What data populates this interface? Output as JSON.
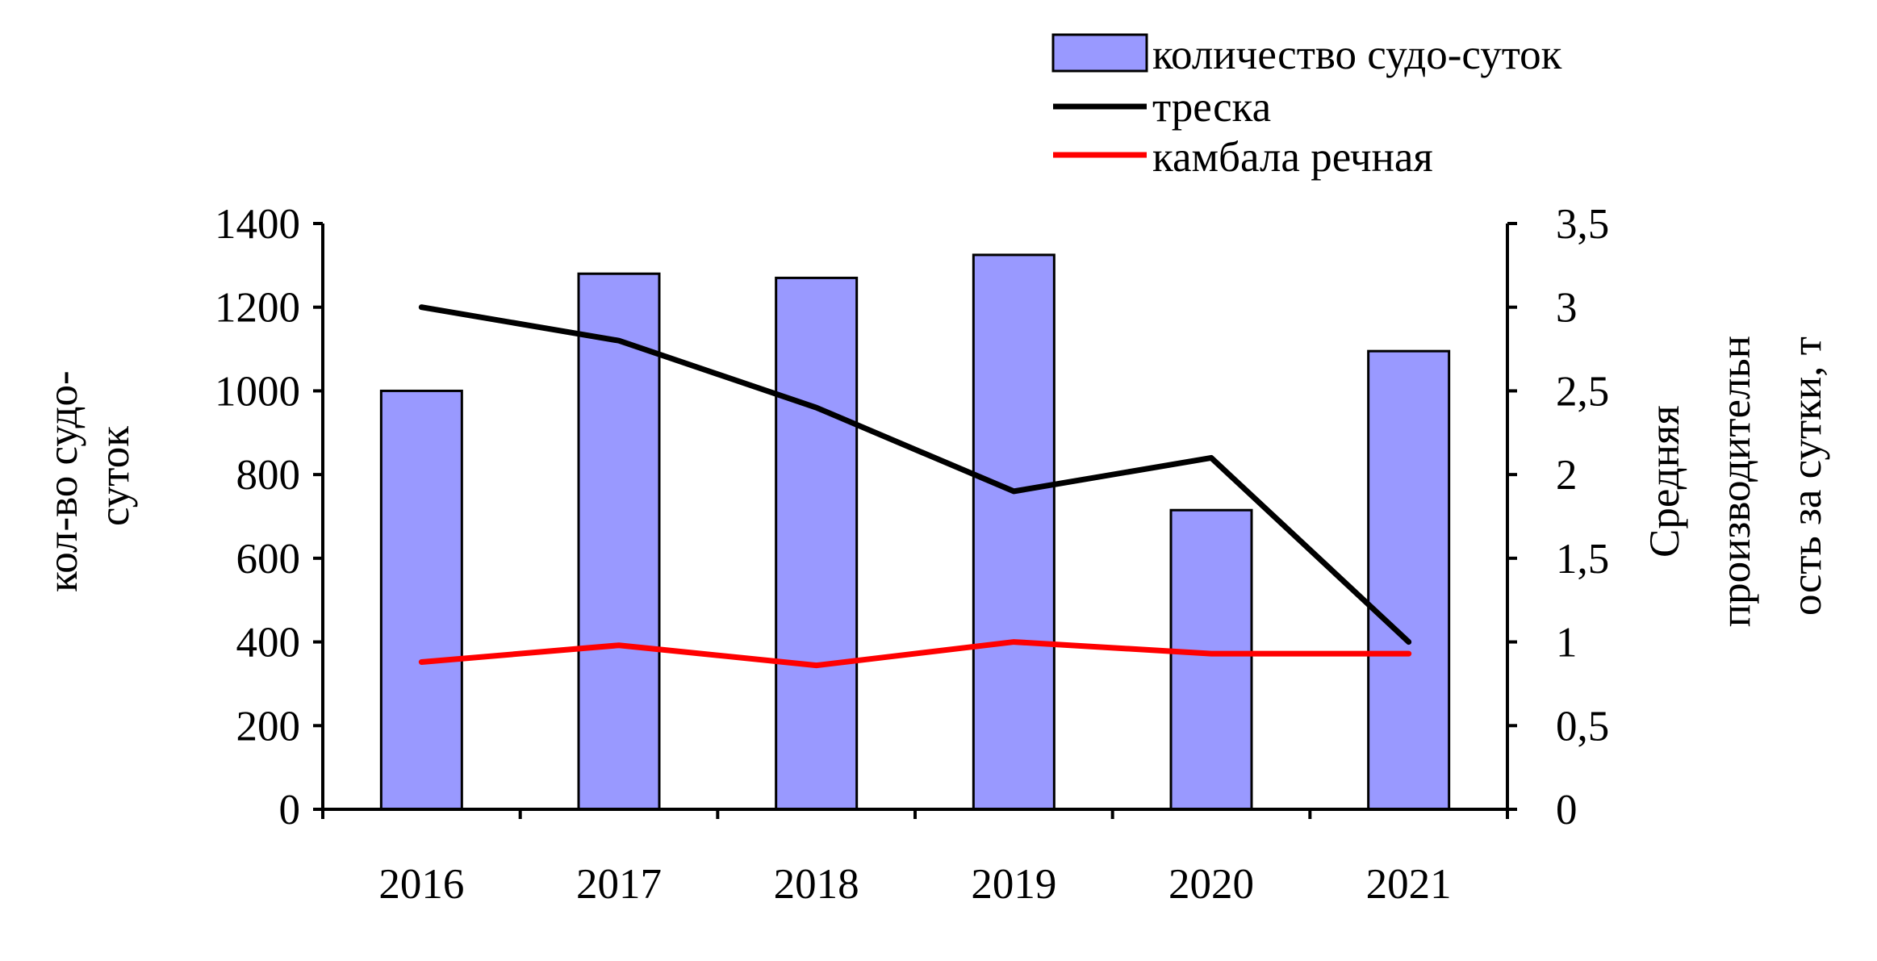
{
  "chart_data": {
    "type": "bar",
    "categories": [
      "2016",
      "2017",
      "2018",
      "2019",
      "2020",
      "2021"
    ],
    "bar_series": {
      "name": "количество судо-суток",
      "axis": "left",
      "color": "#9999ff",
      "values": [
        1000,
        1280,
        1270,
        1325,
        715,
        1095
      ]
    },
    "line_series": [
      {
        "name": "треска",
        "axis": "right",
        "color": "#000000",
        "values": [
          3.0,
          2.8,
          2.4,
          1.9,
          2.1,
          1.0
        ]
      },
      {
        "name": "камбала речная",
        "axis": "right",
        "color": "#ff0000",
        "values": [
          0.88,
          0.98,
          0.86,
          1.0,
          0.93,
          0.93
        ]
      }
    ],
    "left_axis": {
      "title_lines": [
        "кол-во судо-",
        "суток"
      ],
      "min": 0,
      "max": 1400,
      "ticks": [
        "0",
        "200",
        "400",
        "600",
        "800",
        "1000",
        "1200",
        "1400"
      ]
    },
    "right_axis": {
      "title_lines": [
        "Средняя",
        "производительн",
        "ость за сутки, т"
      ],
      "min": 0,
      "max": 3.5,
      "ticks": [
        "0",
        "0,5",
        "1",
        "1,5",
        "2",
        "2,5",
        "3",
        "3,5"
      ]
    },
    "grid": false,
    "legend_position": "top-right"
  }
}
